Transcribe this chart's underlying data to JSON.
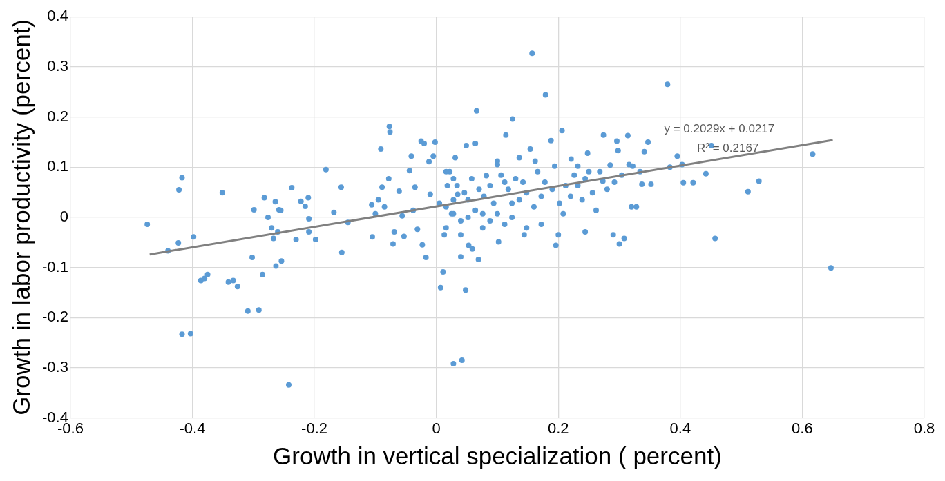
{
  "chart_data": {
    "type": "scatter",
    "xlabel": "Growth in vertical specialization ( percent)",
    "ylabel": "Growth in labor productivity (percent)",
    "xlim": [
      -0.6,
      0.8
    ],
    "xticks": [
      -0.6,
      -0.4,
      -0.2,
      0,
      0.2,
      0.4,
      0.6,
      0.8
    ],
    "ylim": [
      -0.4,
      0.4
    ],
    "yticks": [
      -0.4,
      -0.3,
      -0.2,
      -0.1,
      0,
      0.1,
      0.2,
      0.3,
      0.4
    ],
    "grid": true,
    "legend": false,
    "annotations": [
      "y = 0.2029x + 0.0217",
      "R² = 0.2167"
    ],
    "series": [
      {
        "marker": "circle",
        "color": "#5b9bd5",
        "x": [
          -0.474,
          -0.417,
          -0.422,
          -0.423,
          -0.44,
          -0.398,
          -0.351,
          -0.417,
          -0.403,
          -0.386,
          -0.38,
          -0.375,
          -0.341,
          -0.333,
          -0.326,
          -0.309,
          -0.291,
          -0.302,
          -0.299,
          -0.282,
          -0.285,
          -0.276,
          -0.27,
          -0.267,
          -0.264,
          -0.263,
          -0.258,
          -0.255,
          -0.26,
          -0.254,
          -0.242,
          -0.237,
          -0.23,
          -0.222,
          -0.215,
          -0.21,
          -0.209,
          -0.209,
          -0.198,
          -0.181,
          -0.168,
          -0.156,
          -0.155,
          -0.145,
          -0.106,
          -0.105,
          -0.1,
          -0.095,
          -0.091,
          -0.089,
          -0.085,
          -0.078,
          -0.077,
          -0.076,
          -0.071,
          -0.069,
          -0.061,
          -0.056,
          -0.053,
          -0.044,
          -0.041,
          -0.038,
          -0.035,
          -0.031,
          -0.025,
          -0.023,
          -0.02,
          -0.017,
          -0.012,
          -0.01,
          -0.005,
          -0.002,
          0.005,
          0.007,
          0.011,
          0.013,
          0.018,
          0.022,
          0.025,
          0.028,
          0.031,
          0.035,
          0.04,
          0.042,
          0.048,
          0.049,
          0.053,
          0.059,
          0.064,
          0.066,
          0.069,
          0.076,
          0.082,
          0.114,
          0.1,
          0.102,
          0.112,
          0.125,
          0.136,
          0.144,
          0.154,
          0.157,
          0.166,
          0.179,
          0.188,
          0.196,
          0.2,
          0.206,
          0.212,
          0.221,
          0.239,
          0.244,
          0.248,
          0.274,
          0.285,
          0.29,
          0.296,
          0.298,
          0.3,
          0.308,
          0.314,
          0.32,
          0.322,
          0.337,
          0.341,
          0.347,
          0.352,
          0.379,
          0.383,
          0.395,
          0.403,
          0.405,
          0.421,
          0.442,
          0.451,
          0.457,
          0.511,
          0.529,
          0.617,
          0.647,
          0.016,
          0.028,
          0.034,
          0.046,
          0.052,
          0.058,
          0.07,
          0.078,
          0.088,
          0.094,
          0.106,
          0.118,
          0.124,
          0.13,
          0.142,
          0.148,
          0.16,
          0.172,
          0.178,
          0.19,
          0.202,
          0.208,
          0.22,
          0.226,
          0.232,
          0.244,
          0.256,
          0.262,
          0.268,
          0.28,
          0.292,
          0.304,
          0.316,
          0.328,
          0.016,
          0.028,
          0.04,
          0.052,
          0.064,
          0.076,
          0.088,
          0.1,
          0.112,
          0.124,
          0.148,
          0.172,
          0.028,
          0.016,
          0.04,
          0.1,
          0.136,
          0.162,
          0.194,
          0.232,
          0.25,
          0.273,
          0.334
        ],
        "values": [
          -0.014,
          0.079,
          0.055,
          -0.051,
          -0.067,
          -0.039,
          0.049,
          -0.233,
          -0.232,
          -0.126,
          -0.122,
          -0.114,
          -0.129,
          -0.126,
          -0.138,
          -0.187,
          -0.185,
          -0.08,
          0.015,
          0.039,
          -0.114,
          0.0,
          -0.021,
          -0.042,
          0.031,
          -0.097,
          0.015,
          0.014,
          -0.029,
          -0.087,
          -0.334,
          0.059,
          -0.044,
          0.032,
          0.022,
          0.039,
          -0.003,
          -0.029,
          -0.044,
          0.095,
          0.01,
          0.06,
          -0.07,
          -0.01,
          0.025,
          -0.039,
          0.007,
          0.035,
          0.136,
          0.06,
          0.021,
          0.077,
          0.181,
          0.17,
          -0.053,
          -0.029,
          0.052,
          0.003,
          -0.038,
          0.093,
          0.122,
          0.014,
          0.06,
          -0.024,
          0.152,
          -0.055,
          0.147,
          -0.08,
          0.111,
          0.046,
          0.122,
          0.15,
          0.028,
          -0.14,
          -0.109,
          -0.035,
          0.063,
          0.091,
          0.007,
          -0.292,
          0.119,
          0.046,
          -0.079,
          -0.285,
          -0.145,
          0.143,
          -0.056,
          -0.063,
          0.147,
          0.212,
          -0.084,
          -0.021,
          0.083,
          0.164,
          0.105,
          -0.049,
          0.07,
          0.196,
          0.035,
          -0.035,
          0.136,
          0.327,
          0.091,
          0.244,
          0.153,
          -0.056,
          -0.035,
          0.173,
          0.063,
          0.116,
          0.035,
          -0.029,
          0.128,
          0.164,
          0.104,
          -0.035,
          0.152,
          0.133,
          -0.053,
          -0.042,
          0.163,
          0.021,
          0.102,
          0.066,
          0.131,
          0.15,
          0.066,
          0.265,
          0.1,
          0.122,
          0.105,
          0.069,
          0.069,
          0.087,
          0.143,
          -0.042,
          0.051,
          0.072,
          0.126,
          -0.101,
          0.091,
          0.077,
          0.063,
          0.049,
          0.035,
          0.077,
          0.056,
          0.042,
          0.063,
          0.028,
          0.084,
          0.056,
          0.028,
          0.077,
          0.07,
          0.049,
          0.021,
          0.042,
          0.07,
          0.056,
          0.028,
          0.007,
          0.042,
          0.084,
          0.063,
          0.077,
          0.049,
          0.014,
          0.091,
          0.056,
          0.07,
          0.084,
          0.105,
          0.021,
          0.021,
          0.007,
          -0.007,
          0.0,
          0.014,
          0.007,
          -0.007,
          0.007,
          -0.014,
          0.0,
          -0.021,
          -0.014,
          0.035,
          -0.021,
          -0.035,
          0.112,
          0.119,
          0.112,
          0.102,
          0.102,
          0.091,
          0.072,
          0.091
        ]
      },
      {
        "type": "line",
        "marker": "none",
        "color": "#808080",
        "x": [
          -0.47,
          0.65
        ],
        "values": [
          -0.074,
          0.154
        ]
      }
    ]
  }
}
